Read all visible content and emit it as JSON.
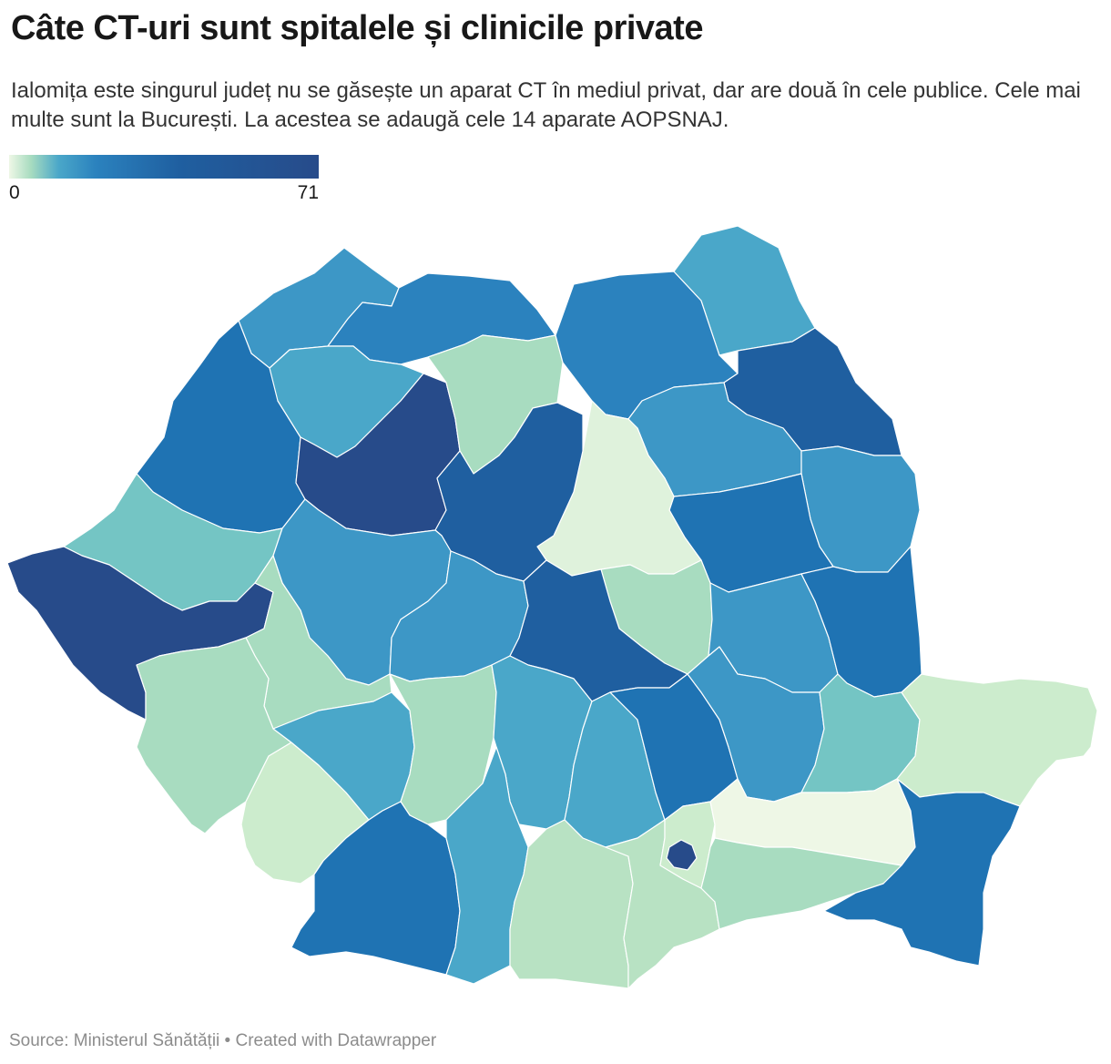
{
  "header": {
    "title": "Câte CT-uri sunt spitalele și clinicile private",
    "subtitle": "Ialomița este singurul județ nu se găsește un aparat CT în mediul privat, dar are două în cele publice. Cele mai multe sunt la București. La acestea se adaugă cele 14 aparate AOPSNAJ."
  },
  "legend": {
    "min_label": "0",
    "max_label": "71",
    "min_value": 0,
    "max_value": 71,
    "colors": [
      "#eef7e6",
      "#a8dcc0",
      "#4aa7c9",
      "#2b82be",
      "#1f5fa0",
      "#274b8a"
    ]
  },
  "map_colors": {
    "very_light": "#eef7e6",
    "light_1": "#dff2dc",
    "light_2": "#cceccd",
    "mint": "#b8e2c3",
    "green": "#a8dcc0",
    "teal": "#74c5c4",
    "sky": "#4aa7c9",
    "blue_mid": "#3d97c6",
    "blue": "#2b82be",
    "blue_deep": "#1f73b3",
    "navy": "#1f5fa0",
    "darkest": "#274b8a"
  },
  "footer": {
    "text": "Source: Ministerul Sănătății • Created with Datawrapper"
  }
}
